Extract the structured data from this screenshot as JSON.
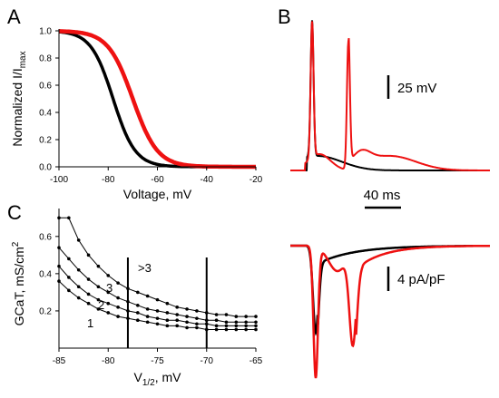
{
  "panels": {
    "A": "A",
    "B": "B",
    "C": "C"
  },
  "colors": {
    "control": "#000000",
    "mutant": "#ee1111"
  },
  "chart_data": [
    {
      "type": "line",
      "panel": "A",
      "ylabel_main": "Normalized I/I",
      "ylabel_sub": "max",
      "xlabel": "Voltage, mV",
      "xlim": [
        -100,
        -20
      ],
      "ylim": [
        0,
        1.0
      ],
      "xticks": [
        -100,
        -80,
        -60,
        -40,
        -20
      ],
      "yticks": [
        0.0,
        0.2,
        0.4,
        0.6,
        0.8,
        1.0
      ],
      "ytick_labels": [
        "0.0",
        "0.2",
        "0.4",
        "0.6",
        "0.8",
        "1.0"
      ],
      "series": [
        {
          "color": "control",
          "v_half": -78,
          "slope": 4.5
        },
        {
          "color": "mutant",
          "v_half": -70,
          "slope": 5.0
        }
      ]
    },
    {
      "type": "line",
      "panel": "B",
      "scale_bars": {
        "voltage": "25 mV",
        "time": "40 ms",
        "current": "4 pA/pF"
      },
      "traces": [
        {
          "signal": "membrane potential",
          "color": "control",
          "spikes": 1
        },
        {
          "signal": "membrane potential",
          "color": "mutant",
          "spikes": 2
        },
        {
          "signal": "current",
          "color": "control",
          "troughs": 1
        },
        {
          "signal": "current",
          "color": "mutant",
          "troughs": 2
        }
      ]
    },
    {
      "type": "line",
      "panel": "C",
      "ylabel_main": "GCaT, mS/cm",
      "ylabel_sup": "2",
      "xlabel_main": "V",
      "xlabel_sub": "1/2",
      "xlabel_tail": ", mV",
      "xlim": [
        -85,
        -65
      ],
      "ylim": [
        0,
        0.75
      ],
      "xticks": [
        -85,
        -80,
        -75,
        -70,
        -65
      ],
      "yticks": [
        0.2,
        0.4,
        0.6
      ],
      "ytick_labels": [
        "0.2",
        "0.4",
        "0.6"
      ],
      "x": [
        -85,
        -84,
        -83,
        -82,
        -81,
        -80,
        -79,
        -78,
        -77,
        -76,
        -75,
        -74,
        -73,
        -72,
        -71,
        -70,
        -69,
        -68,
        -67,
        -66,
        -65
      ],
      "vlines": [
        -78,
        -70
      ],
      "series": [
        {
          "name": ">3",
          "values": [
            0.7,
            0.7,
            0.58,
            0.5,
            0.44,
            0.39,
            0.35,
            0.32,
            0.3,
            0.28,
            0.26,
            0.24,
            0.22,
            0.21,
            0.2,
            0.19,
            0.18,
            0.18,
            0.17,
            0.17,
            0.17
          ]
        },
        {
          "name": "3",
          "values": [
            0.54,
            0.48,
            0.42,
            0.37,
            0.33,
            0.3,
            0.27,
            0.25,
            0.23,
            0.21,
            0.2,
            0.19,
            0.18,
            0.17,
            0.16,
            0.15,
            0.15,
            0.14,
            0.14,
            0.14,
            0.14
          ]
        },
        {
          "name": "2",
          "values": [
            0.44,
            0.38,
            0.33,
            0.29,
            0.26,
            0.24,
            0.22,
            0.2,
            0.19,
            0.17,
            0.16,
            0.15,
            0.15,
            0.14,
            0.13,
            0.13,
            0.12,
            0.12,
            0.12,
            0.12,
            0.12
          ]
        },
        {
          "name": "1",
          "values": [
            0.36,
            0.31,
            0.27,
            0.24,
            0.21,
            0.19,
            0.17,
            0.16,
            0.15,
            0.14,
            0.13,
            0.12,
            0.12,
            0.11,
            0.11,
            0.1,
            0.1,
            0.1,
            0.1,
            0.1,
            0.1
          ]
        }
      ]
    }
  ]
}
